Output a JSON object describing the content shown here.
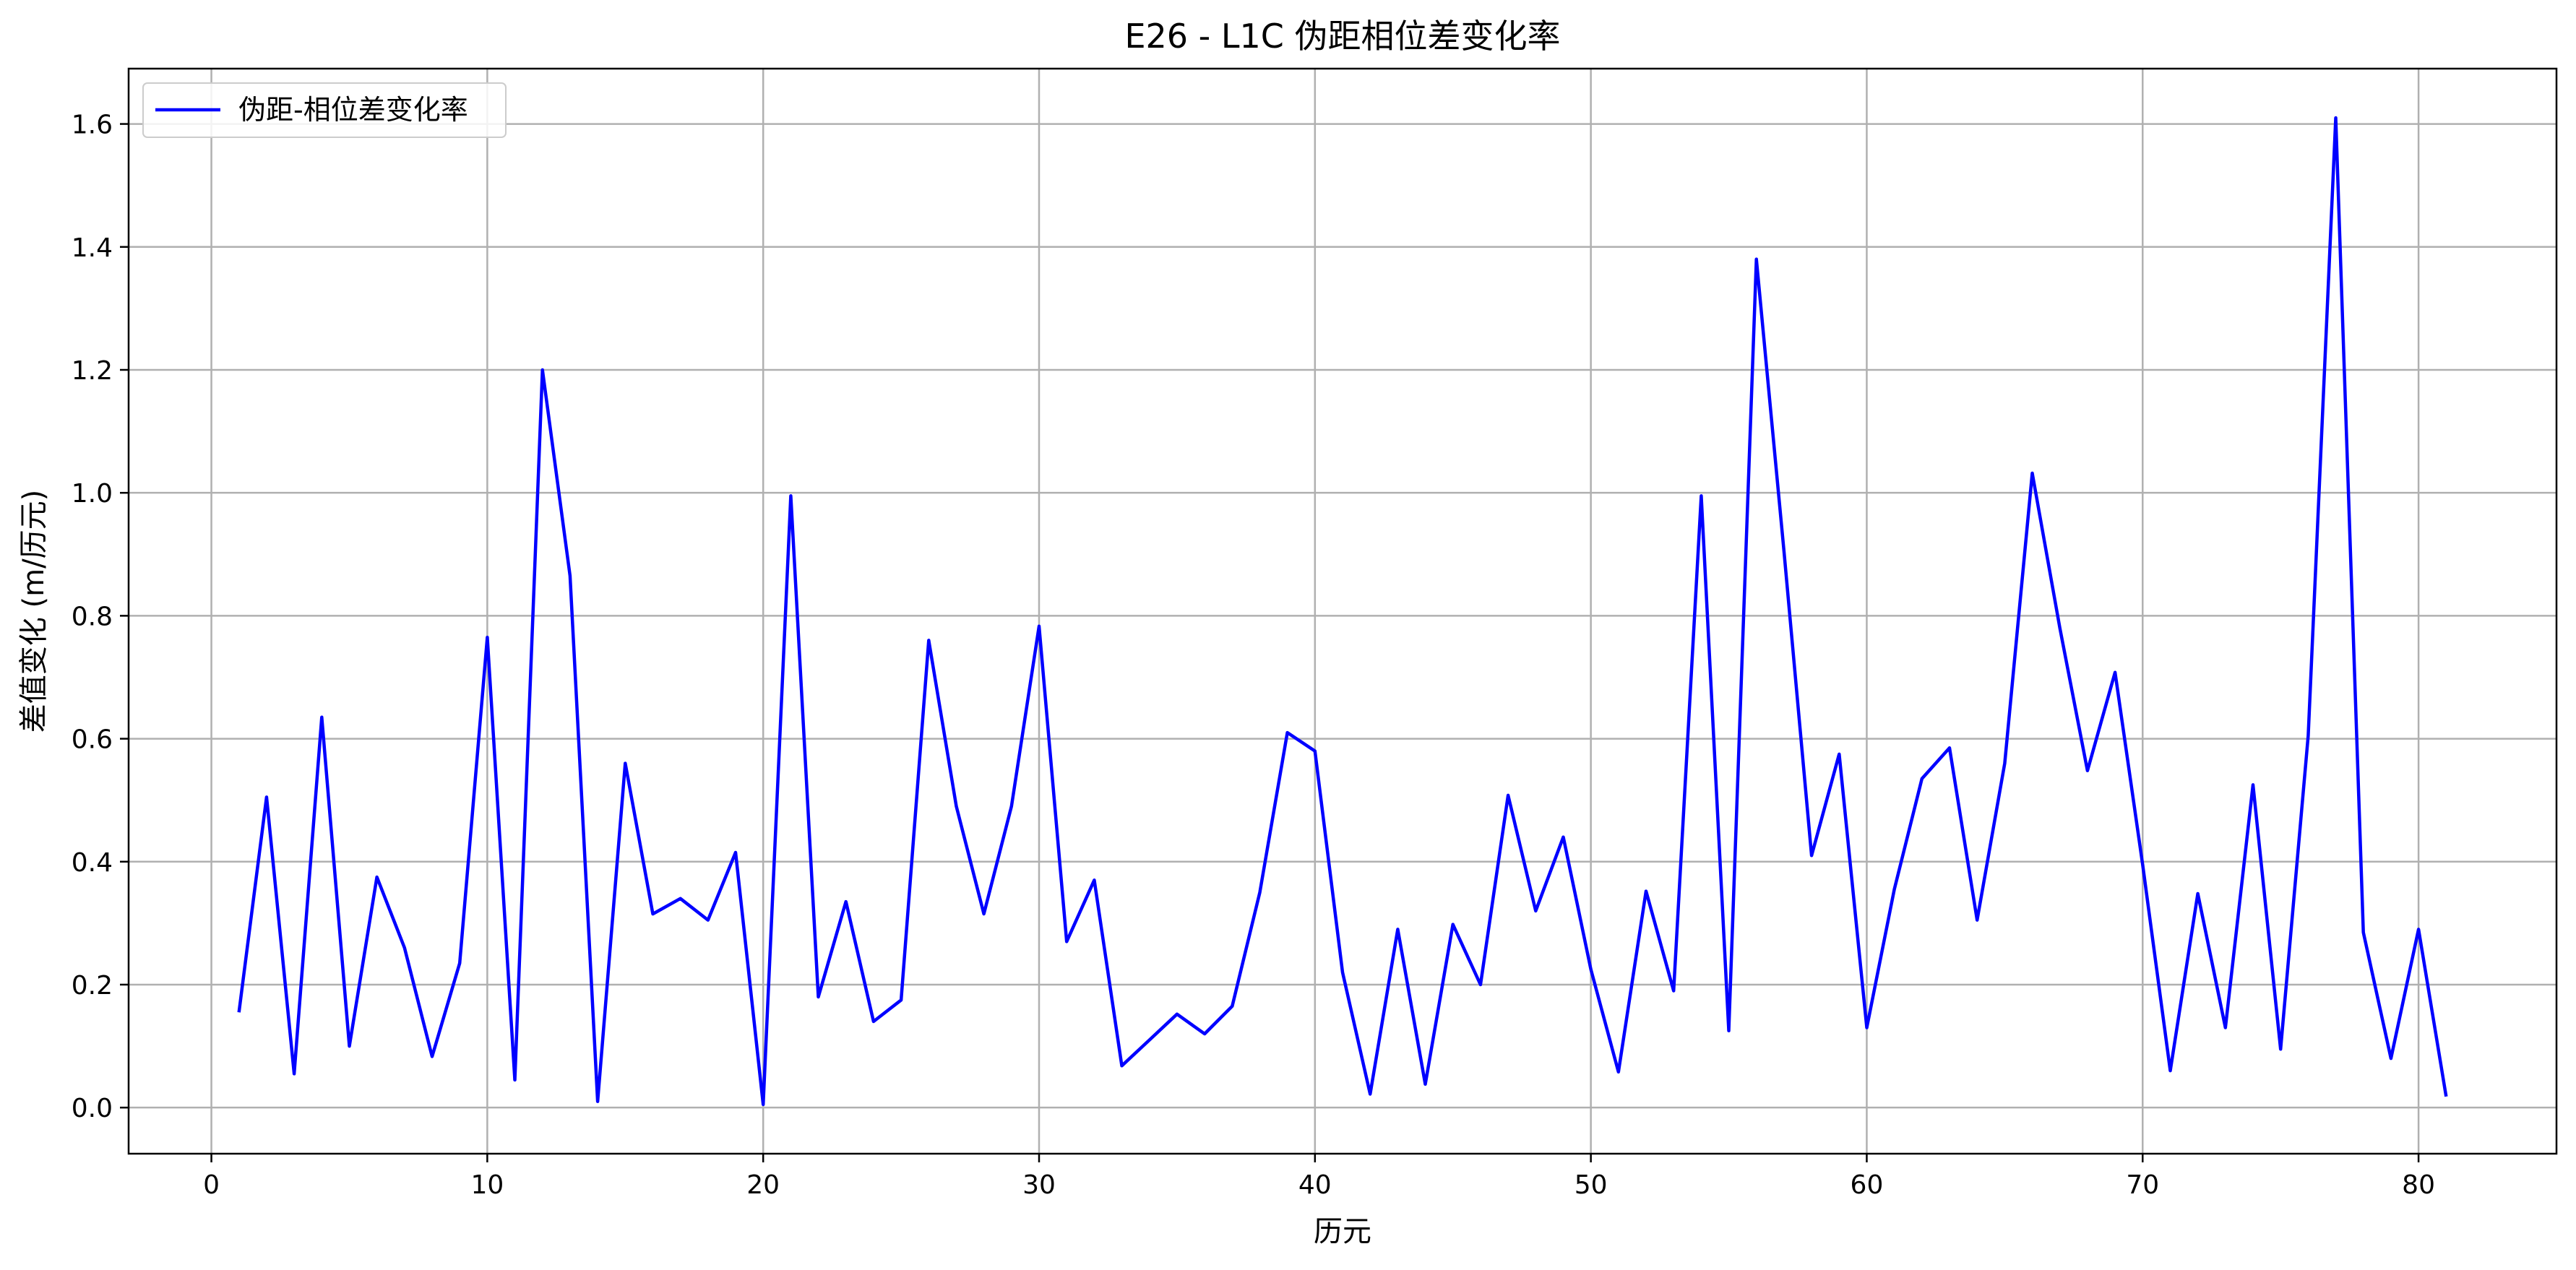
{
  "chart_data": {
    "type": "line",
    "title": "E26 - L1C 伪距相位差变化率",
    "xlabel": "历元",
    "ylabel": "差值变化 (m/历元)",
    "xlim": [
      -3,
      85
    ],
    "ylim": [
      -0.075,
      1.69
    ],
    "xticks": [
      0,
      10,
      20,
      30,
      40,
      50,
      60,
      70,
      80
    ],
    "yticks": [
      0.0,
      0.2,
      0.4,
      0.6,
      0.8,
      1.0,
      1.2,
      1.4,
      1.6
    ],
    "xtick_labels": [
      "0",
      "10",
      "20",
      "30",
      "40",
      "50",
      "60",
      "70",
      "80"
    ],
    "ytick_labels": [
      "0.0",
      "0.2",
      "0.4",
      "0.6",
      "0.8",
      "1.0",
      "1.2",
      "1.4",
      "1.6"
    ],
    "grid": true,
    "legend_position": "top-left",
    "series": [
      {
        "name": "伪距-相位差变化率",
        "color": "#0000ff",
        "x": [
          1,
          2,
          3,
          4,
          5,
          6,
          7,
          8,
          9,
          10,
          11,
          12,
          13,
          14,
          15,
          16,
          17,
          18,
          19,
          20,
          21,
          22,
          23,
          24,
          25,
          26,
          27,
          28,
          29,
          30,
          31,
          32,
          33,
          34,
          35,
          36,
          37,
          38,
          39,
          40,
          41,
          42,
          43,
          44,
          45,
          46,
          47,
          48,
          49,
          50,
          51,
          52,
          53,
          54,
          55,
          56,
          57,
          58,
          59,
          60,
          61,
          62,
          63,
          64,
          65,
          66,
          67,
          68,
          69,
          70,
          71,
          72,
          73,
          74,
          75,
          76,
          77,
          78,
          79,
          80,
          81
        ],
        "values": [
          0.155,
          0.505,
          0.055,
          0.635,
          0.1,
          0.375,
          0.26,
          0.083,
          0.235,
          0.765,
          0.045,
          1.2,
          0.865,
          0.01,
          0.56,
          0.315,
          0.34,
          0.305,
          0.415,
          0.005,
          0.995,
          0.18,
          0.335,
          0.14,
          0.175,
          0.76,
          0.49,
          0.315,
          0.49,
          0.783,
          0.27,
          0.37,
          0.068,
          0.11,
          0.152,
          0.12,
          0.165,
          0.35,
          0.61,
          0.58,
          0.22,
          0.022,
          0.29,
          0.038,
          0.298,
          0.2,
          0.508,
          0.32,
          0.44,
          0.225,
          0.058,
          0.352,
          0.19,
          0.995,
          0.125,
          1.38,
          0.905,
          0.41,
          0.575,
          0.13,
          0.355,
          0.535,
          0.585,
          0.305,
          0.56,
          1.032,
          0.78,
          0.548,
          0.708,
          0.395,
          0.06,
          0.348,
          0.13,
          0.525,
          0.095,
          0.605,
          1.61,
          0.285,
          0.08,
          0.29,
          0.018
        ]
      }
    ]
  }
}
